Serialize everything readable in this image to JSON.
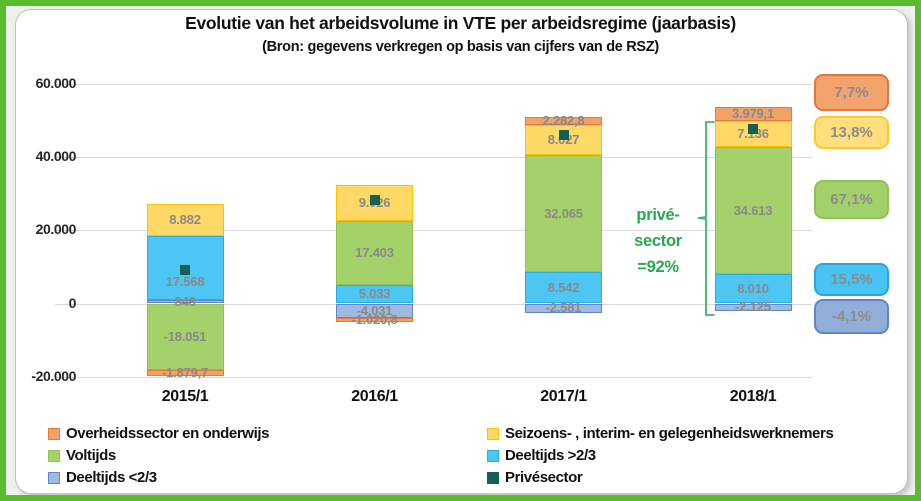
{
  "frame": {
    "outer_border": "#58BD2B",
    "background": "#EDF0EC",
    "box_border": "#BFBFBF",
    "grid_color": "#D9D9D9",
    "axis_text_color": "#262626",
    "data_label_color": "#898989"
  },
  "chart_data": {
    "type": "bar",
    "stacked": true,
    "title": "Evolutie van het arbeidsvolume  in VTE per arbeidsregime  (jaarbasis)",
    "subtitle": "(Bron: gegevens verkregen op basis van cijfers van de RSZ)",
    "categories": [
      "2015/1",
      "2016/1",
      "2017/1",
      "2018/1"
    ],
    "ylim": [
      -20000,
      60000
    ],
    "grid": true,
    "legend_position": "bottom",
    "y_ticks": [
      {
        "value": 60000,
        "label": "60.000"
      },
      {
        "value": 40000,
        "label": "40.000"
      },
      {
        "value": 20000,
        "label": "20.000"
      },
      {
        "value": 0,
        "label": "0"
      },
      {
        "value": -20000,
        "label": "-20.000"
      }
    ],
    "series": [
      {
        "key": "overheid",
        "name": "Overheidssector en onderwijs",
        "fill": "#F3A266",
        "border": "#E8793B",
        "values": [
          -1879.7,
          -1020.8,
          2282.8,
          3979.1
        ],
        "labels": [
          "-1.879,7",
          "-1.020,8",
          "2.282,8",
          "3.979,1"
        ]
      },
      {
        "key": "seizoens",
        "name": "Seizoens- , interim- en gelegenheidswerknemers",
        "fill": "#FFD966",
        "border": "#FFC000",
        "values": [
          8882,
          9926,
          8027,
          7136
        ],
        "labels": [
          "8.882",
          "9.926",
          "8.027",
          "7.136"
        ]
      },
      {
        "key": "voltijds",
        "name": "Voltijds",
        "fill": "#A4D16A",
        "border": "#8FC350",
        "values": [
          -18051,
          17403,
          32065,
          34613
        ],
        "labels": [
          "-18.051",
          "17.403",
          "32.065",
          "34.613"
        ]
      },
      {
        "key": "deeltijds_gt",
        "name": "Deeltijds >2/3",
        "fill": "#4DC6F4",
        "border": "#27ACE3",
        "values": [
          17568,
          5033,
          8542,
          8010
        ],
        "labels": [
          "17.568",
          "5.033",
          "8.542",
          "8.010"
        ]
      },
      {
        "key": "deeltijds_lt",
        "name": "Deeltijds <2/3",
        "fill": "#9FB9DF",
        "border": "#5D87C9",
        "values": [
          846,
          -4031,
          -2581,
          -2125
        ],
        "labels": [
          "846",
          "-4.031",
          "-2.581",
          "-2.125"
        ]
      },
      {
        "key": "prive",
        "name": "Privésector",
        "marker": true,
        "fill": "#166056",
        "border": "#0E4A42",
        "values": [
          9245,
          28331,
          46053,
          47634
        ],
        "labels": [
          "",
          "",
          "",
          ""
        ]
      }
    ]
  },
  "badges": {
    "items": [
      {
        "text": "7,7%",
        "fill": "#F2A36E",
        "border": "#E2773E"
      },
      {
        "text": "13,8%",
        "fill": "#FFDE7D",
        "border": "#FFC828"
      },
      {
        "text": "67,1%",
        "fill": "#A3D169",
        "border": "#8FC350"
      },
      {
        "text": "15,5%",
        "fill": "#49C3F2",
        "border": "#22A7E0"
      },
      {
        "text": "-4,1%",
        "fill": "#92AED8",
        "border": "#5D86C5"
      }
    ]
  },
  "annotation": {
    "lines": [
      "privé-",
      "sector",
      "=92%"
    ],
    "color": "#27A84D",
    "bracket_color": "#3FB568"
  },
  "legend": {
    "columns": [
      {
        "items": [
          {
            "label": "Overheidssector en onderwijs",
            "series_key": "overheid"
          },
          {
            "label": "Voltijds",
            "series_key": "voltijds"
          },
          {
            "label": "Deeltijds <2/3",
            "series_key": "deeltijds_lt"
          }
        ]
      },
      {
        "items": [
          {
            "label": "Seizoens- , interim- en gelegenheidswerknemers",
            "series_key": "seizoens"
          },
          {
            "label": "Deeltijds >2/3",
            "series_key": "deeltijds_gt"
          },
          {
            "label": "Privésector",
            "series_key": "prive"
          }
        ]
      }
    ]
  }
}
